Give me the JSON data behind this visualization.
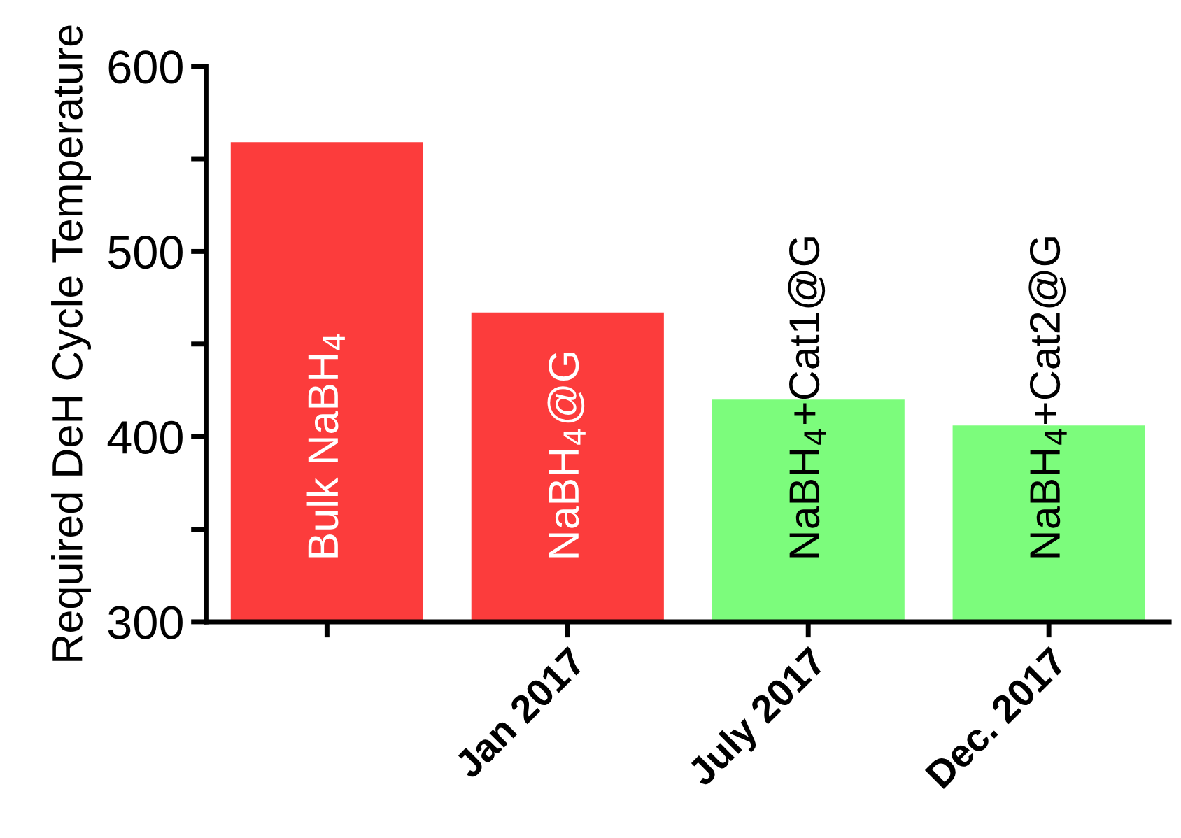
{
  "chart_data": {
    "type": "bar",
    "ylabel": "Required DeH Cycle Temperature",
    "categories": [
      null,
      "Jan 2017",
      "July 2017",
      "Dec. 2017"
    ],
    "values": [
      559,
      467,
      420,
      406
    ],
    "colors": [
      "#fc3c3c",
      "#fc3c3c",
      "#7cfc7c",
      "#7cfc7c"
    ],
    "ylim": [
      300,
      600
    ],
    "yticks": [
      300,
      {
        "value": 350,
        "label": null
      },
      400,
      {
        "value": 450,
        "label": null
      },
      500,
      {
        "value": 550,
        "label": null
      },
      600
    ],
    "annotations": [
      "Bulk NaBH$_{4}$",
      "NaBH$_{4}$@G",
      "NaBH$_{4}$+Cat1@G",
      "NaBH$_{4}$+Cat2@G"
    ],
    "grid": false
  }
}
